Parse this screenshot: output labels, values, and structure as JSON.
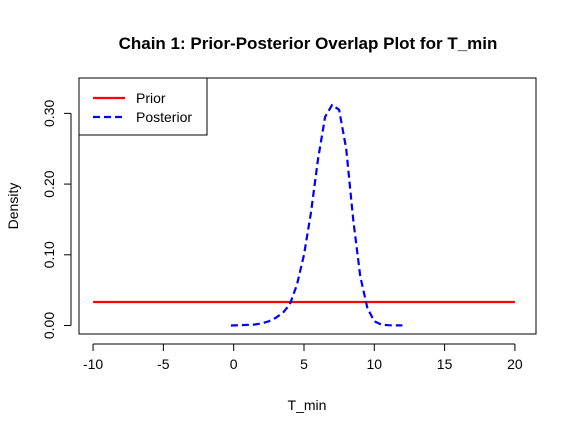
{
  "chart_data": {
    "type": "line",
    "title": "Chain 1: Prior-Posterior Overlap Plot for T_min",
    "xlabel": "T_min",
    "ylabel": "Density",
    "xlim": [
      -11,
      21.5
    ],
    "ylim": [
      -0.012,
      0.35
    ],
    "x_ticks": [
      -10,
      -5,
      0,
      5,
      10,
      15,
      20
    ],
    "x_tick_labels": [
      "-10",
      "-5",
      "0",
      "5",
      "10",
      "15",
      "20"
    ],
    "y_ticks": [
      0,
      0.1,
      0.2,
      0.3
    ],
    "y_tick_labels": [
      "0.00",
      "0.10",
      "0.20",
      "0.30"
    ],
    "grid": false,
    "legend_position": "top-left",
    "series": [
      {
        "name": "Prior",
        "color": "#ff0000",
        "style": "solid",
        "x": [
          -10,
          20
        ],
        "y": [
          0.0333,
          0.0333
        ]
      },
      {
        "name": "Posterior",
        "color": "#0000ff",
        "style": "dashed",
        "x": [
          -0.2,
          0.5,
          1,
          1.5,
          2,
          2.5,
          3,
          3.5,
          4,
          4.5,
          5,
          5.5,
          6,
          6.5,
          7,
          7.5,
          8,
          8.5,
          9,
          9.5,
          10,
          10.5,
          11,
          11.5,
          12
        ],
        "y": [
          0.0,
          0.0005,
          0.0008,
          0.0015,
          0.003,
          0.006,
          0.011,
          0.018,
          0.03,
          0.058,
          0.1,
          0.16,
          0.235,
          0.295,
          0.312,
          0.305,
          0.25,
          0.15,
          0.07,
          0.025,
          0.006,
          0.0015,
          0.0005,
          0.0002,
          0.0001
        ]
      }
    ]
  }
}
